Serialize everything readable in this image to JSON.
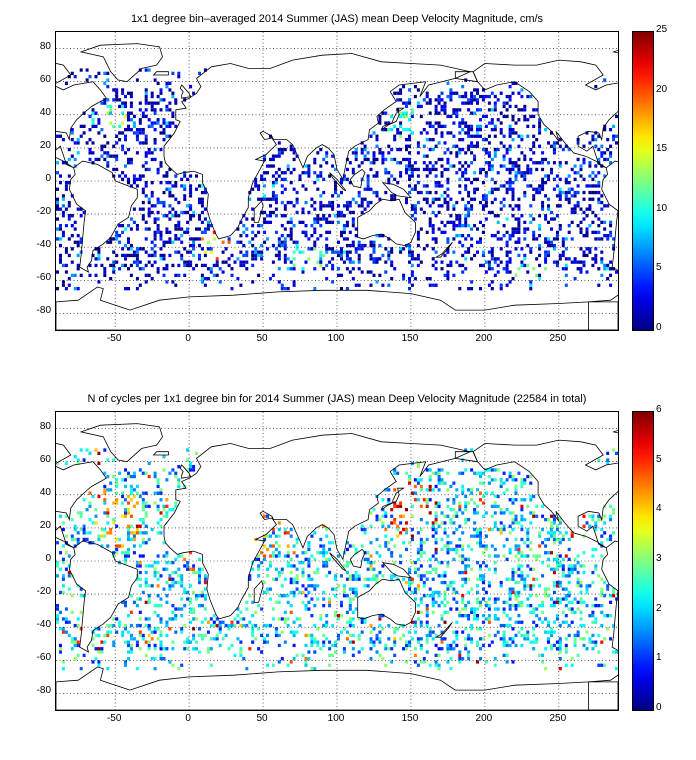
{
  "colormap": "jet",
  "panels": [
    {
      "title": "1x1 degree bin–averaged 2014 Summer (JAS) mean Deep Velocity Magnitude, cm/s",
      "chart_data": {
        "type": "heatmap",
        "x_ticks": [
          -50,
          0,
          50,
          100,
          150,
          200,
          250
        ],
        "y_ticks": [
          80,
          60,
          40,
          20,
          0,
          -20,
          -40,
          -60,
          -80
        ],
        "xlim": [
          -90,
          290
        ],
        "ylim": [
          -90,
          90
        ],
        "grid": true,
        "grid_style": "dotted",
        "colorbar": {
          "ticks": [
            25,
            20,
            15,
            10,
            5,
            0
          ],
          "clim": [
            0,
            25
          ],
          "colormap": "jet"
        },
        "dominant_value_range": [
          0,
          8
        ],
        "high_value_regions": [
          {
            "lon": 20,
            "lat": -40,
            "value": 22
          },
          {
            "lon": -55,
            "lat": 38,
            "value": 15
          },
          {
            "lon": 145,
            "lat": 35,
            "value": 14
          },
          {
            "lon": 80,
            "lat": -47,
            "value": 14
          },
          {
            "lon": 230,
            "lat": -55,
            "value": 13
          },
          {
            "lon": 280,
            "lat": 45,
            "value": 14
          }
        ]
      }
    },
    {
      "title": "N of cycles per 1x1 degree bin for 2014 Summer (JAS) mean Deep Velocity Magnitude (22584 in total)",
      "chart_data": {
        "type": "heatmap",
        "x_ticks": [
          -50,
          0,
          50,
          100,
          150,
          200,
          250
        ],
        "y_ticks": [
          80,
          60,
          40,
          20,
          0,
          -20,
          -40,
          -60,
          -80
        ],
        "xlim": [
          -90,
          290
        ],
        "ylim": [
          -90,
          90
        ],
        "grid": true,
        "grid_style": "dotted",
        "colorbar": {
          "ticks": [
            6,
            5,
            4,
            3,
            2,
            1,
            0
          ],
          "clim": [
            0,
            6
          ],
          "colormap": "jet"
        },
        "total_cycles": 22584,
        "dominant_value_range": [
          1,
          3
        ],
        "high_value_regions": [
          {
            "lon": 150,
            "lat": 30,
            "value": 5
          },
          {
            "lon": -50,
            "lat": 25,
            "value": 4
          },
          {
            "lon": 60,
            "lat": 15,
            "value": 4
          }
        ]
      }
    }
  ]
}
